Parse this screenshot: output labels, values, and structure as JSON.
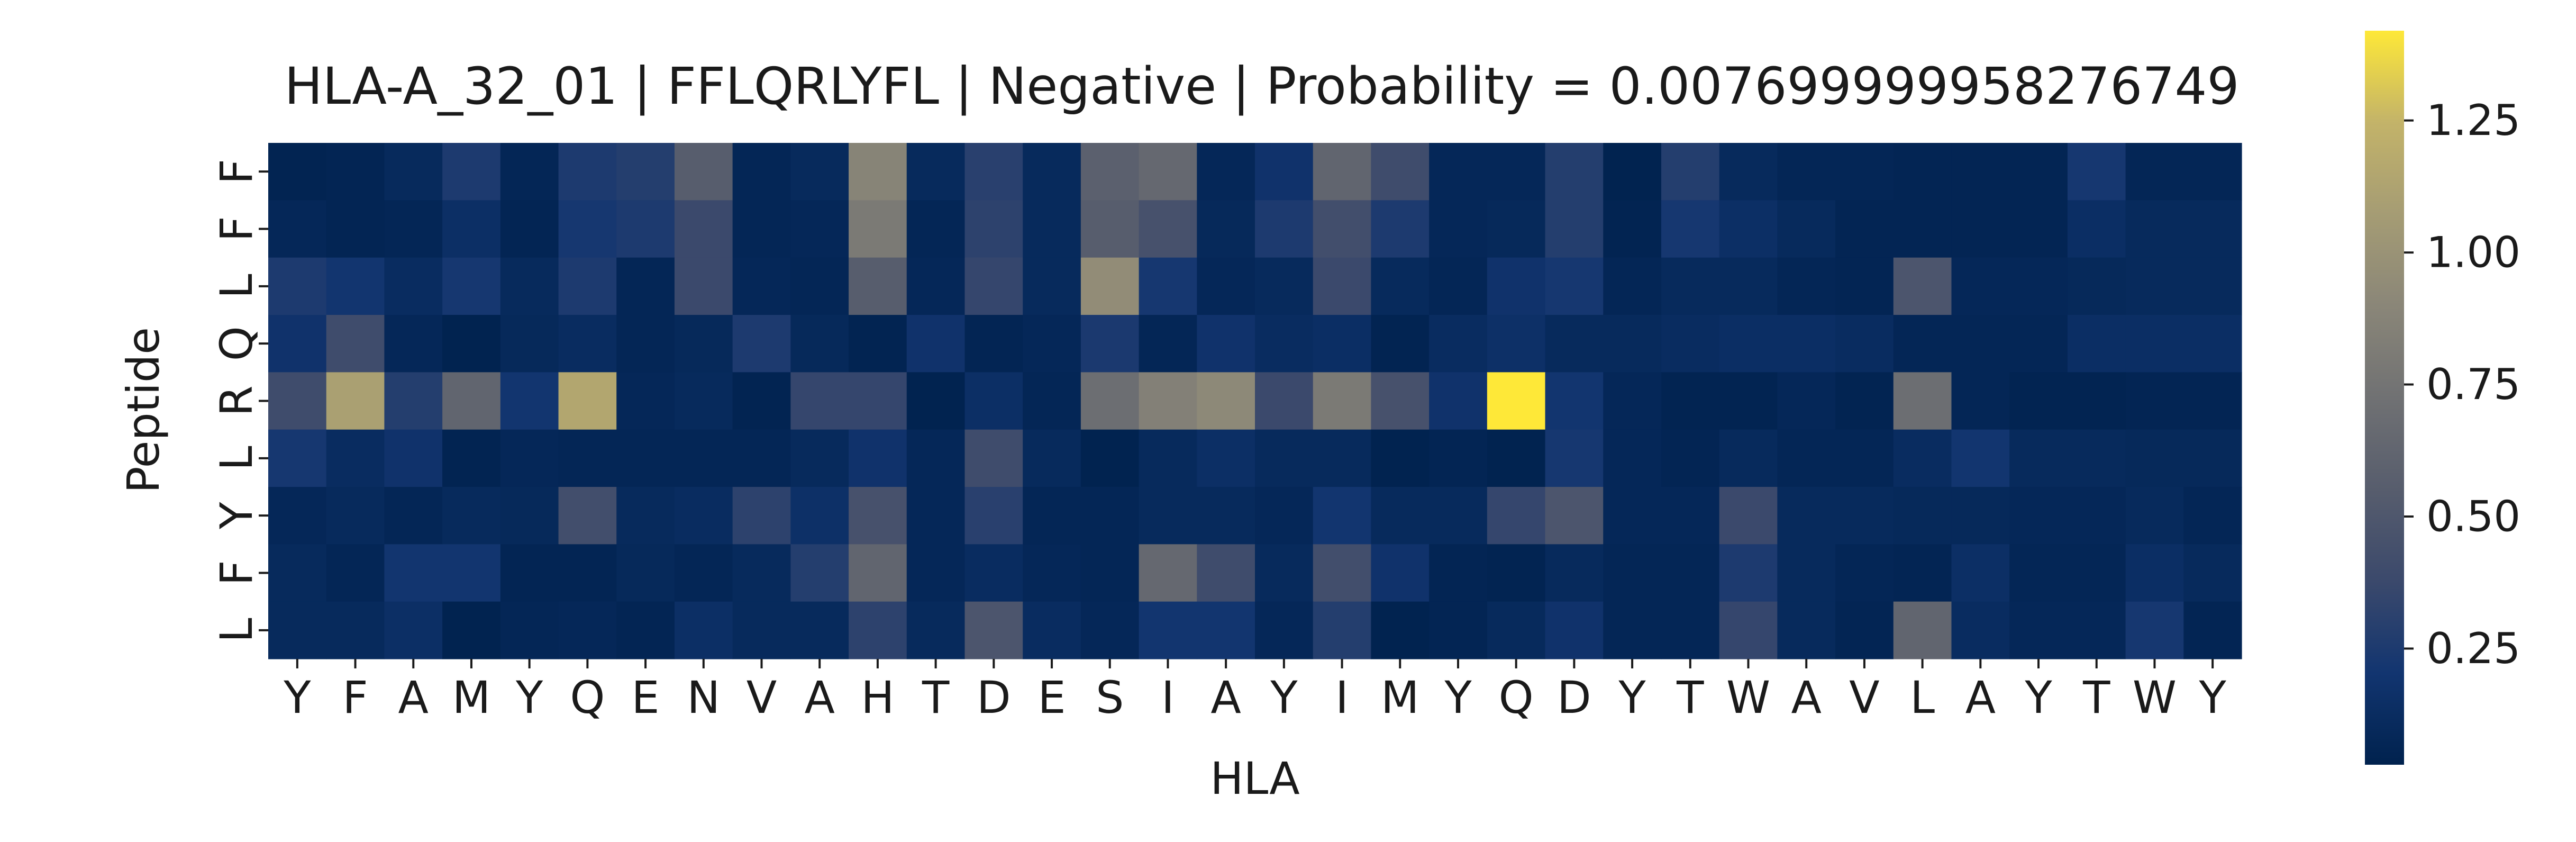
{
  "chart_data": {
    "type": "heatmap",
    "title": "HLA-A_32_01 | FFLQRLYFL | Negative | Probability = 0.007699999958276749",
    "xlabel": "HLA",
    "ylabel": "Peptide",
    "x_categories": [
      "Y",
      "F",
      "A",
      "M",
      "Y",
      "Q",
      "E",
      "N",
      "V",
      "A",
      "H",
      "T",
      "D",
      "E",
      "S",
      "I",
      "A",
      "Y",
      "I",
      "M",
      "Y",
      "Q",
      "D",
      "Y",
      "T",
      "W",
      "A",
      "V",
      "L",
      "A",
      "Y",
      "T",
      "W",
      "Y"
    ],
    "y_categories": [
      "F",
      "F",
      "L",
      "Q",
      "R",
      "L",
      "Y",
      "F",
      "L"
    ],
    "colormap": "cividis",
    "colorbar": {
      "vmin": 0.03,
      "vmax": 1.42,
      "ticks": [
        0.25,
        0.5,
        0.75,
        1.0,
        1.25
      ],
      "tick_labels": [
        "0.25",
        "0.50",
        "0.75",
        "1.00",
        "1.25"
      ]
    },
    "values": [
      [
        0.05,
        0.06,
        0.1,
        0.25,
        0.07,
        0.25,
        0.28,
        0.55,
        0.07,
        0.1,
        0.88,
        0.1,
        0.3,
        0.1,
        0.58,
        0.65,
        0.08,
        0.18,
        0.62,
        0.4,
        0.08,
        0.08,
        0.28,
        0.04,
        0.28,
        0.1,
        0.07,
        0.07,
        0.06,
        0.06,
        0.06,
        0.22,
        0.07,
        0.07
      ],
      [
        0.08,
        0.06,
        0.07,
        0.15,
        0.06,
        0.22,
        0.25,
        0.38,
        0.07,
        0.08,
        0.8,
        0.07,
        0.32,
        0.1,
        0.55,
        0.45,
        0.09,
        0.25,
        0.42,
        0.25,
        0.08,
        0.09,
        0.28,
        0.05,
        0.22,
        0.15,
        0.1,
        0.06,
        0.06,
        0.06,
        0.06,
        0.14,
        0.1,
        0.1
      ],
      [
        0.25,
        0.2,
        0.12,
        0.22,
        0.1,
        0.25,
        0.07,
        0.38,
        0.08,
        0.07,
        0.55,
        0.08,
        0.35,
        0.1,
        0.95,
        0.22,
        0.08,
        0.1,
        0.38,
        0.1,
        0.07,
        0.18,
        0.22,
        0.07,
        0.1,
        0.1,
        0.07,
        0.06,
        0.48,
        0.08,
        0.08,
        0.09,
        0.1,
        0.1
      ],
      [
        0.18,
        0.4,
        0.08,
        0.04,
        0.09,
        0.12,
        0.07,
        0.09,
        0.25,
        0.09,
        0.05,
        0.18,
        0.06,
        0.08,
        0.24,
        0.07,
        0.18,
        0.12,
        0.14,
        0.05,
        0.12,
        0.16,
        0.1,
        0.1,
        0.12,
        0.14,
        0.14,
        0.12,
        0.07,
        0.07,
        0.07,
        0.14,
        0.14,
        0.14
      ],
      [
        0.4,
        1.1,
        0.28,
        0.62,
        0.2,
        1.15,
        0.08,
        0.1,
        0.05,
        0.35,
        0.35,
        0.04,
        0.15,
        0.07,
        0.7,
        0.85,
        0.92,
        0.38,
        0.8,
        0.45,
        0.18,
        1.42,
        0.2,
        0.08,
        0.05,
        0.05,
        0.08,
        0.05,
        0.7,
        0.07,
        0.05,
        0.05,
        0.06,
        0.06
      ],
      [
        0.22,
        0.12,
        0.18,
        0.05,
        0.08,
        0.07,
        0.07,
        0.07,
        0.07,
        0.1,
        0.18,
        0.08,
        0.4,
        0.1,
        0.04,
        0.1,
        0.15,
        0.1,
        0.1,
        0.04,
        0.06,
        0.04,
        0.22,
        0.08,
        0.06,
        0.1,
        0.07,
        0.07,
        0.12,
        0.2,
        0.1,
        0.1,
        0.09,
        0.09
      ],
      [
        0.08,
        0.1,
        0.07,
        0.1,
        0.09,
        0.42,
        0.1,
        0.12,
        0.32,
        0.16,
        0.45,
        0.08,
        0.3,
        0.07,
        0.07,
        0.1,
        0.1,
        0.08,
        0.2,
        0.1,
        0.1,
        0.35,
        0.48,
        0.08,
        0.08,
        0.38,
        0.1,
        0.1,
        0.09,
        0.09,
        0.08,
        0.08,
        0.1,
        0.07
      ],
      [
        0.1,
        0.07,
        0.2,
        0.2,
        0.06,
        0.06,
        0.09,
        0.07,
        0.1,
        0.28,
        0.62,
        0.08,
        0.12,
        0.08,
        0.07,
        0.65,
        0.4,
        0.1,
        0.42,
        0.18,
        0.06,
        0.05,
        0.1,
        0.07,
        0.07,
        0.25,
        0.1,
        0.07,
        0.06,
        0.15,
        0.07,
        0.07,
        0.14,
        0.1
      ],
      [
        0.1,
        0.1,
        0.15,
        0.04,
        0.07,
        0.08,
        0.06,
        0.15,
        0.1,
        0.1,
        0.32,
        0.1,
        0.48,
        0.12,
        0.08,
        0.2,
        0.2,
        0.08,
        0.28,
        0.04,
        0.06,
        0.1,
        0.18,
        0.07,
        0.07,
        0.35,
        0.1,
        0.06,
        0.62,
        0.12,
        0.08,
        0.08,
        0.22,
        0.06
      ]
    ]
  }
}
